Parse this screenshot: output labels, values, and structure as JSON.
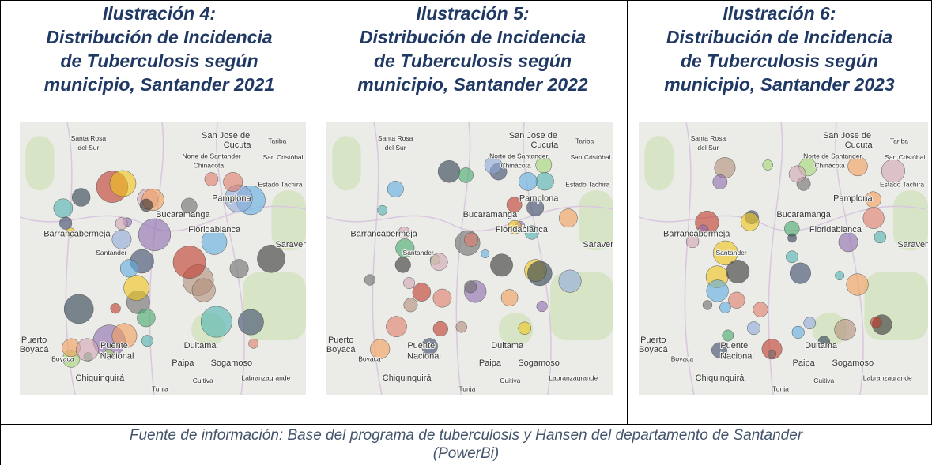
{
  "columns": [
    {
      "caption": [
        "Ilustración 4:",
        "Distribución de Incidencia",
        "de Tuberculosis según",
        "municipio, Santander 2021"
      ]
    },
    {
      "caption": [
        "Ilustración 5:",
        "Distribución de Incidencia",
        "de Tuberculosis según",
        "municipio, Santander 2022"
      ]
    },
    {
      "caption": [
        "Ilustración 6:",
        "Distribución de Incidencia",
        "de Tuberculosis según",
        "municipio, Santander 2023"
      ]
    }
  ],
  "map_labels": [
    "Santa Rosa",
    "del Sur",
    "San Jose de",
    "Cucuta",
    "Tariba",
    "San Cristóbal",
    "Norte de Santander",
    "Chinácota",
    "Estado Tachira",
    "Pamplona",
    "Bucaramanga",
    "Floridablanca",
    "Barrancabermeja",
    "Saraven",
    "Santander",
    "Duitama",
    "Paipa",
    "Sogamoso",
    "Puerto",
    "Boyacá",
    "Puente",
    "Nacional",
    "Boyaca",
    "Chiquinquirá",
    "Tunja",
    "Cuitiva",
    "Labranzagrande"
  ],
  "footer": [
    "Fuente de información: Base del programa de tuberculosis y Hansen del departamento de Santander",
    "(PowerBi)"
  ]
}
